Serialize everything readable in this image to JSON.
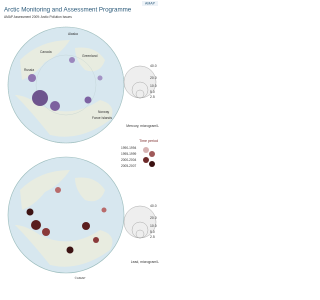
{
  "header": {
    "title": "Arctic Monitoring and Assessment Programme",
    "subtitle": "AMAP Assessment 2009: Arctic Pollution Issues",
    "logo": "AMAP"
  },
  "map_top": {
    "labels": [
      "Alaska",
      "Canada",
      "Greenland",
      "Russia",
      "Norway",
      "Faroe Islands"
    ],
    "legend": {
      "ticks": [
        "40.0",
        "20.0",
        "10.0",
        "5.0",
        "2.5"
      ],
      "title": "Mercury, microgram/L"
    }
  },
  "map_bottom": {
    "time_legend": {
      "title": "Time period",
      "periods": [
        "1990-1994",
        "1995-1999",
        "2000-2004",
        "2005-2007"
      ]
    },
    "legend": {
      "ticks": [
        "40.0",
        "20.0",
        "10.0",
        "5.0",
        "2.5"
      ],
      "title": "Lead, microgram/L"
    }
  },
  "footer": {
    "credit": "©AMAP"
  }
}
